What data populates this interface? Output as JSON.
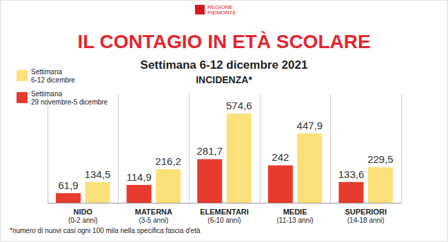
{
  "chart_data": {
    "type": "bar",
    "logo": "REGIONE\nPIEMONTE",
    "title": "IL CONTAGIO IN ETÀ SCOLARE",
    "subtitle": "Settimana 6-12 dicembre 2021",
    "ylabel": "INCIDENZA*",
    "footnote": "*numero di nuovi casi ogni 100 mila nella specifica fascia d'età",
    "categories": [
      "NIDO\n(0-2 anni)",
      "MATERNA\n(3-5 anni)",
      "ELEMENTARI\n(6-10 anni)",
      "MEDIE\n(11-13 anni)",
      "SUPERIORI\n(14-18 anni)"
    ],
    "series": [
      {
        "name": "Settimana\n29 novembre-5 dicembre",
        "color": "#e63b2e",
        "values": [
          61.9,
          114.9,
          281.7,
          242,
          133.6
        ],
        "value_labels": [
          "61,9",
          "114,9",
          "281,7",
          "242",
          "133,6"
        ]
      },
      {
        "name": "Settimana\n6-12 dicembre",
        "color": "#fce07a",
        "values": [
          134.5,
          216.2,
          574.6,
          447.9,
          229.5
        ],
        "value_labels": [
          "134,5",
          "216,2",
          "574,6",
          "447,9",
          "229,5"
        ]
      }
    ],
    "legend_order": [
      "Settimana\n6-12 dicembre",
      "Settimana\n29 novembre-5 dicembre"
    ],
    "ylim": [
      0,
      700
    ],
    "grid": false,
    "tick_labels": "x",
    "data_labels": true,
    "legend": "upper left"
  }
}
